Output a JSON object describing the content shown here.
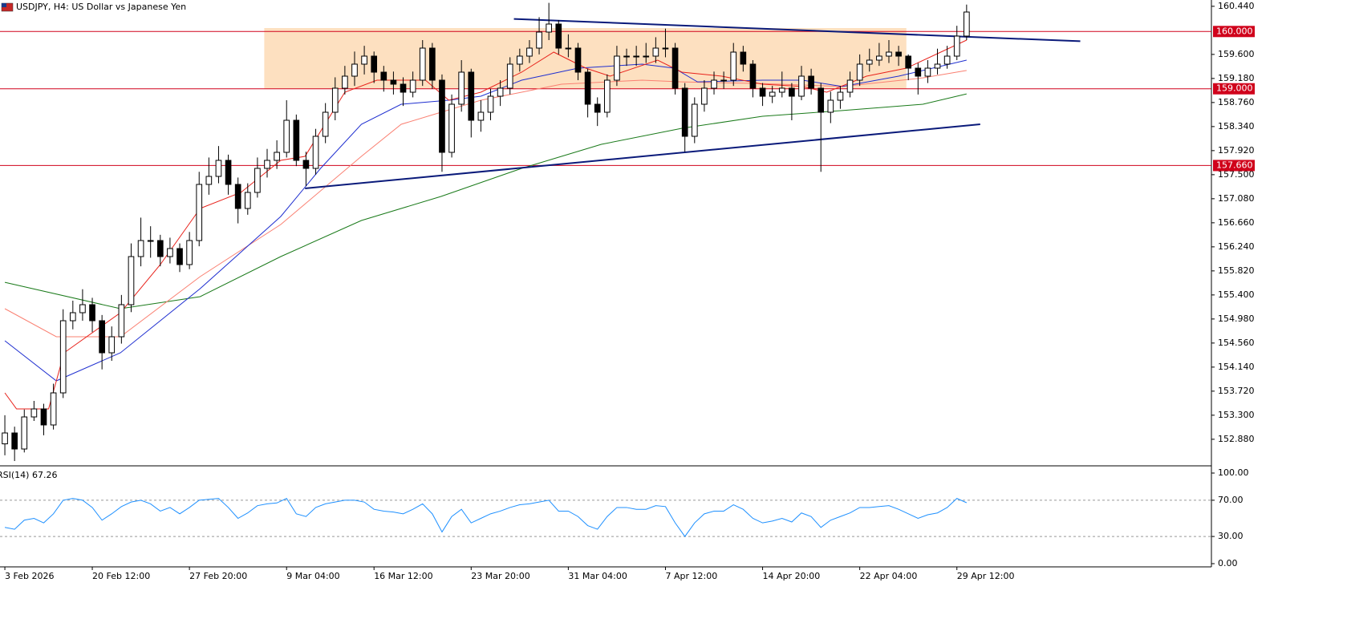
{
  "chart_data": {
    "type": "candlestick",
    "title": "USDJPY, H4:  US Dollar vs Japanese Yen",
    "xlim": [
      -0.5,
      124.2
    ],
    "ylim": [
      152.43,
      160.55
    ],
    "xticks": [
      {
        "value": 0,
        "label": "3 Feb 2026"
      },
      {
        "value": 9,
        "label": "20 Feb 12:00"
      },
      {
        "value": 19,
        "label": "27 Feb 20:00"
      },
      {
        "value": 29,
        "label": "9 Mar 04:00"
      },
      {
        "value": 38,
        "label": "16 Mar 12:00"
      },
      {
        "value": 48,
        "label": "23 Mar 20:00"
      },
      {
        "value": 58,
        "label": "31 Mar 04:00"
      },
      {
        "value": 68,
        "label": "7 Apr 12:00"
      },
      {
        "value": 78,
        "label": "14 Apr 20:00"
      },
      {
        "value": 88,
        "label": "22 Apr 04:00"
      },
      {
        "value": 98,
        "label": "29 Apr 12:00"
      }
    ],
    "yticks": [
      {
        "value": 160.44,
        "label": "160.440"
      },
      {
        "value": 159.6,
        "label": "159.600"
      },
      {
        "value": 159.18,
        "label": "159.180"
      },
      {
        "value": 158.76,
        "label": "158.760"
      },
      {
        "value": 158.34,
        "label": "158.340"
      },
      {
        "value": 157.92,
        "label": "157.920"
      },
      {
        "value": 157.5,
        "label": "157.500"
      },
      {
        "value": 157.08,
        "label": "157.080"
      },
      {
        "value": 156.66,
        "label": "156.660"
      },
      {
        "value": 156.24,
        "label": "156.240"
      },
      {
        "value": 155.82,
        "label": "155.820"
      },
      {
        "value": 155.4,
        "label": "155.400"
      },
      {
        "value": 154.98,
        "label": "154.980"
      },
      {
        "value": 154.56,
        "label": "154.560"
      },
      {
        "value": 154.14,
        "label": "154.140"
      },
      {
        "value": 153.72,
        "label": "153.720"
      },
      {
        "value": 153.3,
        "label": "153.300"
      },
      {
        "value": 152.88,
        "label": "152.880"
      }
    ],
    "levels": [
      {
        "value": 160,
        "label": "160.000"
      },
      {
        "value": 159,
        "label": "159.000"
      },
      {
        "value": 157.66,
        "label": "157.660"
      }
    ],
    "level_color": "#d0021b",
    "zone": {
      "x": [
        26.7,
        92.8
      ],
      "y": [
        159.0,
        160.06
      ],
      "color": "#fde0c0"
    },
    "trendlines": [
      {
        "x": [
          52.4,
          110.7
        ],
        "y": [
          160.22,
          159.83
        ],
        "color": "#0a1a7a"
      },
      {
        "x": [
          30.9,
          100.4
        ],
        "y": [
          157.26,
          158.38
        ],
        "color": "#0a1a7a"
      }
    ],
    "open": [
      152.8,
      152.99,
      152.71,
      153.27,
      153.41,
      153.13,
      153.69,
      154.95,
      155.09,
      155.23,
      154.95,
      154.39,
      154.67,
      155.23,
      156.07,
      156.35,
      156.35,
      156.07,
      156.21,
      155.93,
      156.35,
      157.33,
      157.47,
      157.75,
      157.33,
      156.91,
      157.19,
      157.61,
      157.75,
      157.89,
      158.45,
      157.75,
      157.61,
      158.17,
      158.59,
      159.01,
      159.22,
      159.43,
      159.57,
      159.29,
      159.15,
      159.08,
      158.94,
      159.15,
      159.71,
      159.15,
      157.89,
      158.73,
      159.29,
      158.45,
      158.59,
      158.87,
      159.01,
      159.43,
      159.57,
      159.71,
      159.99,
      160.13,
      159.71,
      159.71,
      159.29,
      158.73,
      158.59,
      159.15,
      159.57,
      159.57,
      159.57,
      159.57,
      159.71,
      159.71,
      159.01,
      158.17,
      158.73,
      159.01,
      159.15,
      159.15,
      159.64,
      159.43,
      159.01,
      158.87,
      158.94,
      159.01,
      158.87,
      159.22,
      159.01,
      158.59,
      158.8,
      158.94,
      159.15,
      159.43,
      159.5,
      159.57,
      159.64,
      159.57,
      159.36,
      159.22,
      159.36,
      159.43,
      159.57,
      159.92
    ],
    "high": [
      153.3,
      153.1,
      153.4,
      153.55,
      153.5,
      153.85,
      155.15,
      155.3,
      155.5,
      155.35,
      155.05,
      154.85,
      155.4,
      156.3,
      156.75,
      156.6,
      156.45,
      156.4,
      156.3,
      156.5,
      157.55,
      157.8,
      158.0,
      157.85,
      157.45,
      157.35,
      157.8,
      157.95,
      158.1,
      158.8,
      158.55,
      157.9,
      158.3,
      158.75,
      159.2,
      159.4,
      159.65,
      159.75,
      159.65,
      159.4,
      159.3,
      159.2,
      159.3,
      159.85,
      159.8,
      159.25,
      158.9,
      159.5,
      159.35,
      158.8,
      159.0,
      159.15,
      159.55,
      159.7,
      159.85,
      160.25,
      160.5,
      160.2,
      159.95,
      159.8,
      159.35,
      158.85,
      159.25,
      159.75,
      159.7,
      159.75,
      159.8,
      159.9,
      160.05,
      159.8,
      159.1,
      158.85,
      159.15,
      159.3,
      159.3,
      159.8,
      159.75,
      159.5,
      159.1,
      159.05,
      159.3,
      159.1,
      159.4,
      159.35,
      159.1,
      158.95,
      159.05,
      159.3,
      159.6,
      159.7,
      159.8,
      159.85,
      159.75,
      159.6,
      159.45,
      159.5,
      159.7,
      159.75,
      160.1,
      160.47
    ],
    "low": [
      152.6,
      152.5,
      152.65,
      153.2,
      152.95,
      153.05,
      153.6,
      154.8,
      154.95,
      154.75,
      154.1,
      154.25,
      154.55,
      155.1,
      155.9,
      156.05,
      155.9,
      155.95,
      155.8,
      155.85,
      156.25,
      157.15,
      157.35,
      157.15,
      156.65,
      156.8,
      157.1,
      157.45,
      157.6,
      157.8,
      157.65,
      157.3,
      157.5,
      158.05,
      158.45,
      158.9,
      159.05,
      159.25,
      159.1,
      158.95,
      158.9,
      158.7,
      158.85,
      159.05,
      159.0,
      157.55,
      157.8,
      158.6,
      158.15,
      158.25,
      158.45,
      158.7,
      158.9,
      159.3,
      159.45,
      159.6,
      159.85,
      159.6,
      159.55,
      159.15,
      158.5,
      158.35,
      158.5,
      159.05,
      159.4,
      159.4,
      159.45,
      159.45,
      159.55,
      158.9,
      157.9,
      158.05,
      158.6,
      158.9,
      159.0,
      159.05,
      159.3,
      158.85,
      158.7,
      158.75,
      158.85,
      158.45,
      158.8,
      158.9,
      157.55,
      158.4,
      158.65,
      158.85,
      159.05,
      159.3,
      159.4,
      159.45,
      159.4,
      159.15,
      158.9,
      159.1,
      159.25,
      159.35,
      159.5,
      159.85
    ],
    "close": [
      152.99,
      152.71,
      153.27,
      153.41,
      153.13,
      153.69,
      154.95,
      155.09,
      155.23,
      154.95,
      154.39,
      154.67,
      155.23,
      156.07,
      156.35,
      156.35,
      156.07,
      156.21,
      155.93,
      156.35,
      157.33,
      157.47,
      157.75,
      157.33,
      156.91,
      157.19,
      157.61,
      157.75,
      157.89,
      158.45,
      157.75,
      157.61,
      158.17,
      158.59,
      159.01,
      159.22,
      159.43,
      159.57,
      159.29,
      159.15,
      159.08,
      158.94,
      159.15,
      159.71,
      159.15,
      157.89,
      158.73,
      159.29,
      158.45,
      158.59,
      158.87,
      159.01,
      159.43,
      159.57,
      159.71,
      159.99,
      160.13,
      159.71,
      159.71,
      159.29,
      158.73,
      158.59,
      159.15,
      159.57,
      159.57,
      159.57,
      159.57,
      159.71,
      159.71,
      159.01,
      158.17,
      158.73,
      159.01,
      159.15,
      159.15,
      159.64,
      159.43,
      159.01,
      158.87,
      158.94,
      159.01,
      158.87,
      159.22,
      159.01,
      158.59,
      158.8,
      158.94,
      159.15,
      159.43,
      159.5,
      159.57,
      159.64,
      159.57,
      159.36,
      159.22,
      159.36,
      159.43,
      159.57,
      159.92,
      160.34
    ],
    "moving_averages": [
      {
        "color": "#1a7a1a",
        "x": [
          0,
          11.9,
          20.1,
          28.4,
          36.7,
          44.9,
          53.2,
          61.4,
          69.7,
          78.0,
          86.2,
          94.5,
          99.0
        ],
        "values": [
          155.62,
          155.16,
          155.37,
          156.07,
          156.7,
          157.12,
          157.61,
          158.03,
          158.31,
          158.52,
          158.62,
          158.73,
          158.91
        ]
      },
      {
        "color": "#fa8072",
        "x": [
          0,
          5.3,
          11.9,
          20.1,
          28.4,
          36.7,
          40.8,
          44.9,
          49.0,
          53.2,
          57.3,
          65.6,
          69.7,
          78.0,
          86.2,
          94.5,
          99.0
        ],
        "values": [
          155.16,
          154.67,
          154.67,
          155.72,
          156.63,
          157.82,
          158.38,
          158.59,
          158.8,
          158.94,
          159.08,
          159.15,
          159.12,
          159.09,
          159.04,
          159.19,
          159.32
        ]
      },
      {
        "color": "#1f2fd0",
        "x": [
          0,
          5.3,
          11.9,
          20.1,
          28.4,
          32.5,
          36.7,
          40.8,
          45.7,
          49.0,
          53.2,
          59.0,
          65.6,
          68.9,
          71.3,
          78.0,
          82.1,
          86.2,
          92.0,
          99.0
        ],
        "values": [
          154.6,
          153.9,
          154.39,
          155.51,
          156.77,
          157.61,
          158.38,
          158.73,
          158.8,
          158.87,
          159.15,
          159.36,
          159.43,
          159.36,
          159.12,
          159.15,
          159.15,
          159.04,
          159.22,
          159.5
        ]
      },
      {
        "color": "#e8221b",
        "x": [
          0,
          1.2,
          4.5,
          6.1,
          11.9,
          16.0,
          20.1,
          24.3,
          28.4,
          30.9,
          35.0,
          38.3,
          43.3,
          45.7,
          49.0,
          53.2,
          56.5,
          59.8,
          62.3,
          67.2,
          69.7,
          73.8,
          78.0,
          82.1,
          84.6,
          88.7,
          92.8,
          99.0
        ],
        "values": [
          153.69,
          153.41,
          153.41,
          154.39,
          155.09,
          155.93,
          156.91,
          157.19,
          157.75,
          157.82,
          158.94,
          159.15,
          159.15,
          158.8,
          158.94,
          159.29,
          159.64,
          159.36,
          159.22,
          159.5,
          159.29,
          159.22,
          159.08,
          159.04,
          158.94,
          159.22,
          159.36,
          159.85
        ]
      }
    ],
    "rsi": {
      "label": "RSI(14) 67.26",
      "color": "#1e90ff",
      "ylim": [
        0,
        100
      ],
      "yticks": [
        {
          "value": 100,
          "label": "100.00"
        },
        {
          "value": 70,
          "label": "70.00"
        },
        {
          "value": 30,
          "label": "30.00"
        },
        {
          "value": 0,
          "label": "0.00"
        }
      ],
      "levels": [
        70,
        30
      ],
      "values": [
        40,
        38,
        48,
        50,
        45,
        55,
        70,
        72,
        70,
        62,
        48,
        55,
        63,
        68,
        70,
        66,
        58,
        62,
        55,
        62,
        70,
        71,
        72,
        62,
        50,
        56,
        64,
        66,
        67,
        72,
        55,
        52,
        62,
        66,
        68,
        70,
        70,
        68,
        60,
        58,
        57,
        55,
        60,
        66,
        55,
        35,
        52,
        60,
        45,
        50,
        55,
        58,
        62,
        65,
        66,
        68,
        70,
        58,
        58,
        52,
        42,
        38,
        52,
        62,
        62,
        60,
        60,
        64,
        63,
        45,
        30,
        45,
        55,
        58,
        58,
        65,
        60,
        50,
        45,
        47,
        50,
        46,
        56,
        52,
        40,
        48,
        52,
        56,
        62,
        62,
        63,
        64,
        60,
        55,
        50,
        54,
        56,
        62,
        72,
        67.26
      ]
    }
  }
}
